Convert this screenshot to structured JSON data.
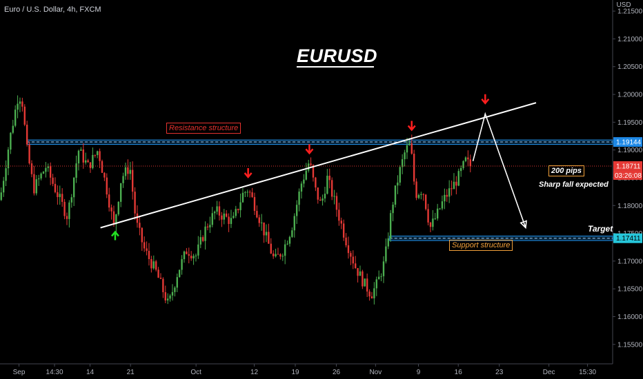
{
  "header": {
    "symbol": "Euro / U.S. Dollar, 4h, FXCM",
    "big_title": "EURUSD",
    "currency": "USD"
  },
  "annotations": {
    "resistance": "Resistance structure",
    "support": "Support structure",
    "pips": "200 pips",
    "sharp_fall": "Sharp fall expected",
    "target": "Target"
  },
  "colors": {
    "bull": "#4caf50",
    "bear": "#e53935",
    "current_price": "#e53935",
    "zone": "#2196f3",
    "resistance_label": "#e5322e",
    "support_label": "#f3a13b",
    "arrow_red": "#ff1f1f",
    "arrow_green": "#22e022"
  },
  "chart_data": {
    "type": "candlestick",
    "title": "EURUSD",
    "symbol": "Euro / U.S. Dollar, 4h, FXCM",
    "ylim": [
      1.1515,
      1.217
    ],
    "y_ticks": [
      "1.15500",
      "1.16000",
      "1.16500",
      "1.17000",
      "1.17500",
      "1.18000",
      "1.18500",
      "1.19000",
      "1.19500",
      "1.20000",
      "1.20500",
      "1.21000",
      "1.21500"
    ],
    "x_ticks": [
      "Sep",
      "14:30",
      "14",
      "21",
      "Oct",
      "12",
      "19",
      "26",
      "Nov",
      "9",
      "16",
      "23",
      "Dec",
      "15:30"
    ],
    "current_price": "1.18711",
    "countdown": "03:26:08",
    "price_tags": {
      "resistance": "1.19144",
      "support": "1.17411"
    },
    "zones": [
      {
        "name": "Resistance structure",
        "low": 1.191,
        "high": 1.1918,
        "level": 1.19144
      },
      {
        "name": "Support structure",
        "low": 1.1737,
        "high": 1.1745,
        "level": 1.17411
      }
    ],
    "trendline": {
      "from": {
        "x": 0.164,
        "y": 1.176
      },
      "to": {
        "x": 0.875,
        "y": 1.1985
      }
    },
    "projection": [
      {
        "x": 0.772,
        "y": 1.188
      },
      {
        "x": 0.792,
        "y": 1.1965
      },
      {
        "x": 0.858,
        "y": 1.176
      }
    ],
    "markers": [
      {
        "type": "down",
        "x": 0.405,
        "y": 1.185
      },
      {
        "type": "down",
        "x": 0.505,
        "y": 1.1893
      },
      {
        "type": "down",
        "x": 0.672,
        "y": 1.1935
      },
      {
        "type": "down",
        "x": 0.792,
        "y": 1.1983
      },
      {
        "type": "up",
        "x": 0.188,
        "y": 1.1755
      }
    ],
    "series_path": [
      [
        0.0,
        1.181
      ],
      [
        0.016,
        1.192
      ],
      [
        0.03,
        1.2
      ],
      [
        0.036,
        1.199
      ],
      [
        0.044,
        1.19
      ],
      [
        0.055,
        1.183
      ],
      [
        0.075,
        1.187
      ],
      [
        0.09,
        1.183
      ],
      [
        0.11,
        1.178
      ],
      [
        0.128,
        1.19
      ],
      [
        0.144,
        1.187
      ],
      [
        0.16,
        1.19
      ],
      [
        0.176,
        1.182
      ],
      [
        0.186,
        1.176
      ],
      [
        0.198,
        1.185
      ],
      [
        0.212,
        1.187
      ],
      [
        0.222,
        1.177
      ],
      [
        0.236,
        1.172
      ],
      [
        0.255,
        1.168
      ],
      [
        0.275,
        1.162
      ],
      [
        0.29,
        1.168
      ],
      [
        0.305,
        1.172
      ],
      [
        0.32,
        1.171
      ],
      [
        0.336,
        1.176
      ],
      [
        0.352,
        1.179
      ],
      [
        0.366,
        1.178
      ],
      [
        0.38,
        1.177
      ],
      [
        0.396,
        1.182
      ],
      [
        0.405,
        1.183
      ],
      [
        0.416,
        1.18
      ],
      [
        0.432,
        1.175
      ],
      [
        0.448,
        1.17
      ],
      [
        0.462,
        1.172
      ],
      [
        0.476,
        1.176
      ],
      [
        0.492,
        1.184
      ],
      [
        0.505,
        1.188
      ],
      [
        0.514,
        1.183
      ],
      [
        0.524,
        1.18
      ],
      [
        0.534,
        1.185
      ],
      [
        0.548,
        1.18
      ],
      [
        0.564,
        1.174
      ],
      [
        0.58,
        1.169
      ],
      [
        0.594,
        1.166
      ],
      [
        0.606,
        1.164
      ],
      [
        0.616,
        1.166
      ],
      [
        0.628,
        1.17
      ],
      [
        0.64,
        1.18
      ],
      [
        0.652,
        1.186
      ],
      [
        0.662,
        1.19
      ],
      [
        0.67,
        1.191
      ],
      [
        0.678,
        1.182
      ],
      [
        0.69,
        1.183
      ],
      [
        0.702,
        1.176
      ],
      [
        0.712,
        1.178
      ],
      [
        0.724,
        1.181
      ],
      [
        0.736,
        1.183
      ],
      [
        0.748,
        1.185
      ],
      [
        0.76,
        1.188
      ],
      [
        0.768,
        1.1871
      ]
    ]
  }
}
